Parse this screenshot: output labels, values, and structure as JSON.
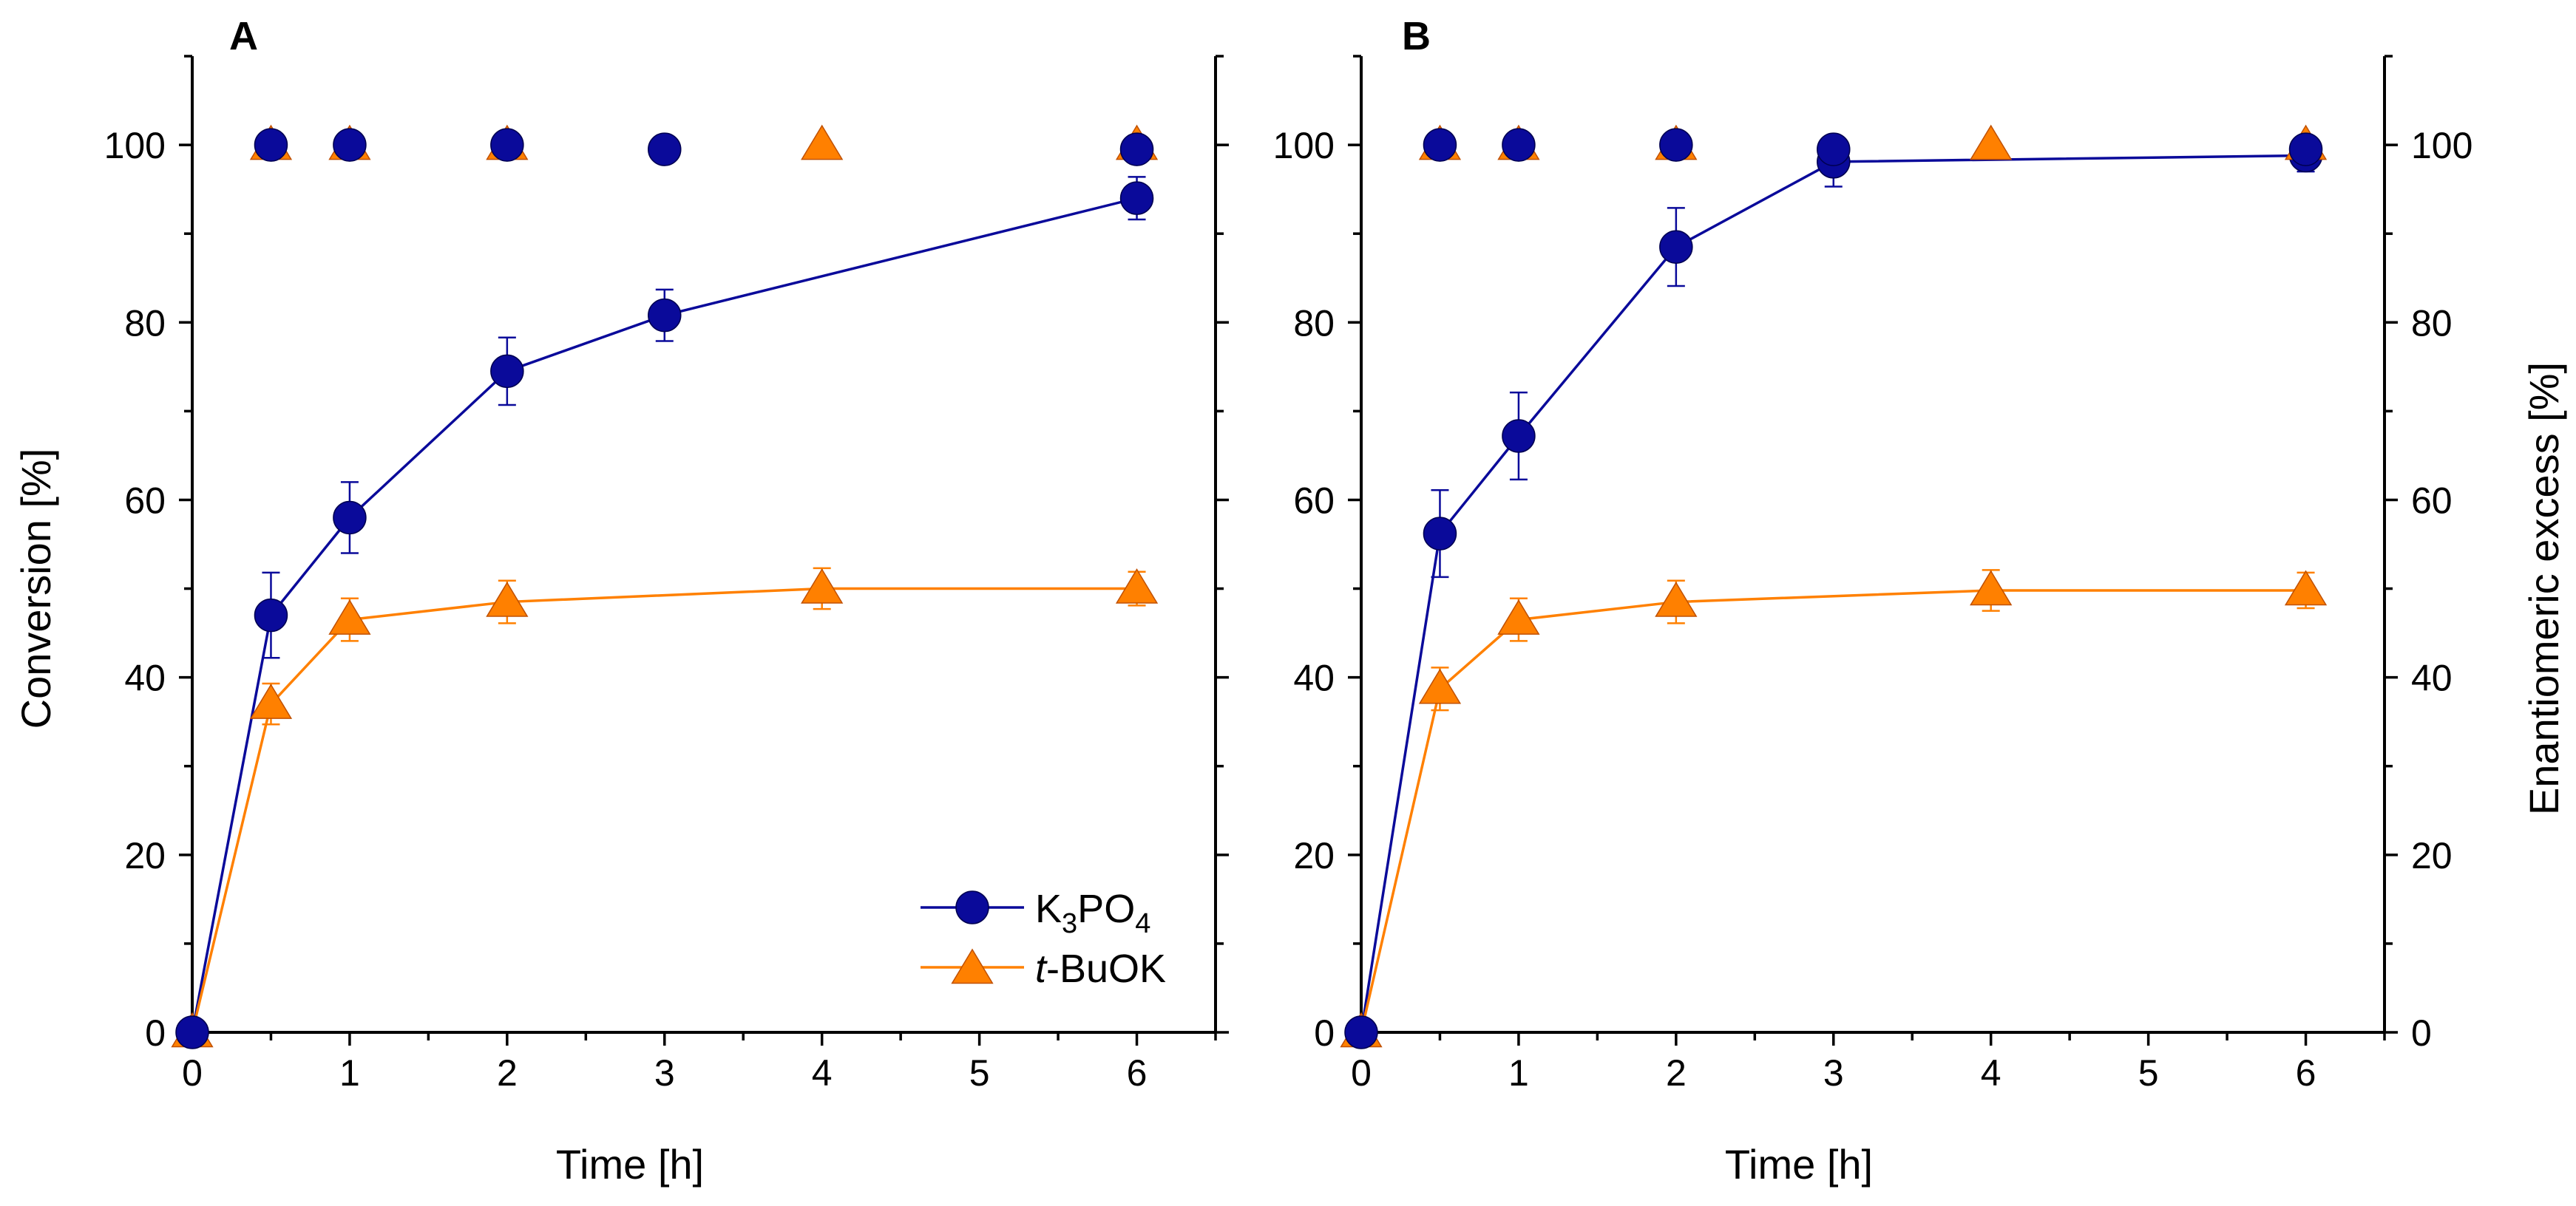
{
  "colors": {
    "k3po4": "#0a0a9a",
    "tbuok": "#ff8000",
    "axis": "#000000"
  },
  "legend": {
    "k3po4_main": "K",
    "k3po4_sub1": "3",
    "k3po4_mid": "PO",
    "k3po4_sub2": "4",
    "tbuok_italic": "t",
    "tbuok_rest": "-BuOK"
  },
  "chart_data": [
    {
      "type": "line",
      "panel": "A",
      "xlabel": "Time [h]",
      "ylabel": "Conversion [%]",
      "y2label": "",
      "xlim": [
        0,
        6.5
      ],
      "ylim": [
        0,
        110
      ],
      "xticks": [
        0,
        1,
        2,
        3,
        4,
        5,
        6
      ],
      "yticks": [
        0,
        20,
        40,
        60,
        80,
        100
      ],
      "series": [
        {
          "name": "K3PO4",
          "key": "k3po4",
          "marker": "circle",
          "x": [
            0,
            0.5,
            1,
            2,
            3,
            6
          ],
          "values": [
            0,
            47,
            58,
            74.5,
            80.8,
            94
          ],
          "errors": [
            0,
            4.8,
            4,
            3.8,
            2.9,
            2.4
          ]
        },
        {
          "name": "t-BuOK",
          "key": "tbuok",
          "marker": "triangle",
          "x": [
            0,
            0.5,
            1,
            2,
            4,
            6
          ],
          "values": [
            0,
            37,
            46.5,
            48.5,
            50,
            50
          ],
          "errors": [
            0,
            2.3,
            2.4,
            2.4,
            2.3,
            1.9
          ]
        }
      ],
      "ee_series": [
        {
          "name": "K3PO4 ee",
          "key": "k3po4",
          "marker": "circle",
          "x": [
            0.5,
            1,
            2,
            3,
            6
          ],
          "values": [
            100,
            100,
            100,
            99.5,
            99.5
          ]
        },
        {
          "name": "t-BuOK ee",
          "key": "tbuok",
          "marker": "triangle",
          "x": [
            0.5,
            1,
            2,
            4,
            6
          ],
          "values": [
            100,
            100,
            100,
            100,
            100
          ]
        }
      ]
    },
    {
      "type": "line",
      "panel": "B",
      "xlabel": "Time [h]",
      "ylabel": "",
      "y2label": "Enantiomeric excess [%]",
      "xlim": [
        0,
        6.5
      ],
      "ylim": [
        0,
        110
      ],
      "xticks": [
        0,
        1,
        2,
        3,
        4,
        5,
        6
      ],
      "yticks": [
        0,
        20,
        40,
        60,
        80,
        100
      ],
      "series": [
        {
          "name": "K3PO4",
          "key": "k3po4",
          "marker": "circle",
          "x": [
            0,
            0.5,
            1,
            2,
            3,
            6
          ],
          "values": [
            0,
            56.2,
            67.2,
            88.5,
            98.1,
            98.8
          ],
          "errors": [
            0,
            4.9,
            4.9,
            4.4,
            2.8,
            1.8
          ]
        },
        {
          "name": "t-BuOK",
          "key": "tbuok",
          "marker": "triangle",
          "x": [
            0,
            0.5,
            1,
            2,
            4,
            6
          ],
          "values": [
            0,
            38.7,
            46.5,
            48.5,
            49.8,
            49.8
          ],
          "errors": [
            0,
            2.4,
            2.4,
            2.4,
            2.3,
            2.0
          ]
        }
      ],
      "ee_series": [
        {
          "name": "K3PO4 ee",
          "key": "k3po4",
          "marker": "circle",
          "x": [
            0.5,
            1,
            2,
            3,
            6
          ],
          "values": [
            100,
            100,
            100,
            99.5,
            99.5
          ]
        },
        {
          "name": "t-BuOK ee",
          "key": "tbuok",
          "marker": "triangle",
          "x": [
            0.5,
            1,
            2,
            4,
            6
          ],
          "values": [
            100,
            100,
            100,
            100,
            100
          ]
        }
      ]
    }
  ]
}
